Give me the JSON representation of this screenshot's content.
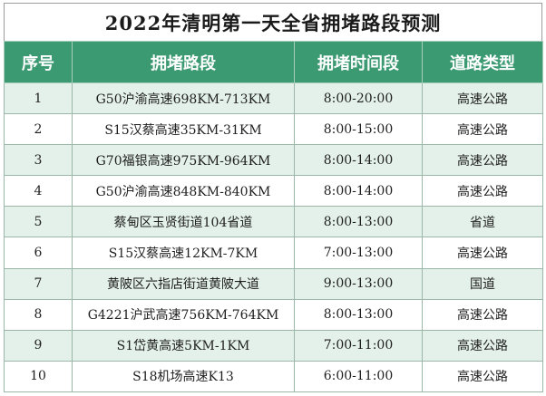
{
  "title": "2022年清明第一天全省拥堵路段预测",
  "table": {
    "headers": [
      "序号",
      "拥堵路段",
      "拥堵时间段",
      "道路类型"
    ],
    "rows": [
      {
        "no": "1",
        "section": "G50沪渝高速698KM-713KM",
        "time": "8:00-20:00",
        "type": "高速公路"
      },
      {
        "no": "2",
        "section": "S15汉蔡高速35KM-31KM",
        "time": "8:00-15:00",
        "type": "高速公路"
      },
      {
        "no": "3",
        "section": "G70福银高速975KM-964KM",
        "time": "8:00-14:00",
        "type": "高速公路"
      },
      {
        "no": "4",
        "section": "G50沪渝高速848KM-840KM",
        "time": "8:00-14:00",
        "type": "高速公路"
      },
      {
        "no": "5",
        "section": "蔡甸区玉贤街道104省道",
        "time": "8:00-13:00",
        "type": "省道"
      },
      {
        "no": "6",
        "section": "S15汉蔡高速12KM-7KM",
        "time": "7:00-13:00",
        "type": "高速公路"
      },
      {
        "no": "7",
        "section": "黄陂区六指店街道黄陂大道",
        "time": "9:00-13:00",
        "type": "国道"
      },
      {
        "no": "8",
        "section": "G4221沪武高速756KM-764KM",
        "time": "8:00-13:00",
        "type": "高速公路"
      },
      {
        "no": "9",
        "section": "S1岱黄高速5KM-1KM",
        "time": "7:00-11:00",
        "type": "高速公路"
      },
      {
        "no": "10",
        "section": "S18机场高速K13",
        "time": "6:00-11:00",
        "type": "高速公路"
      }
    ]
  }
}
